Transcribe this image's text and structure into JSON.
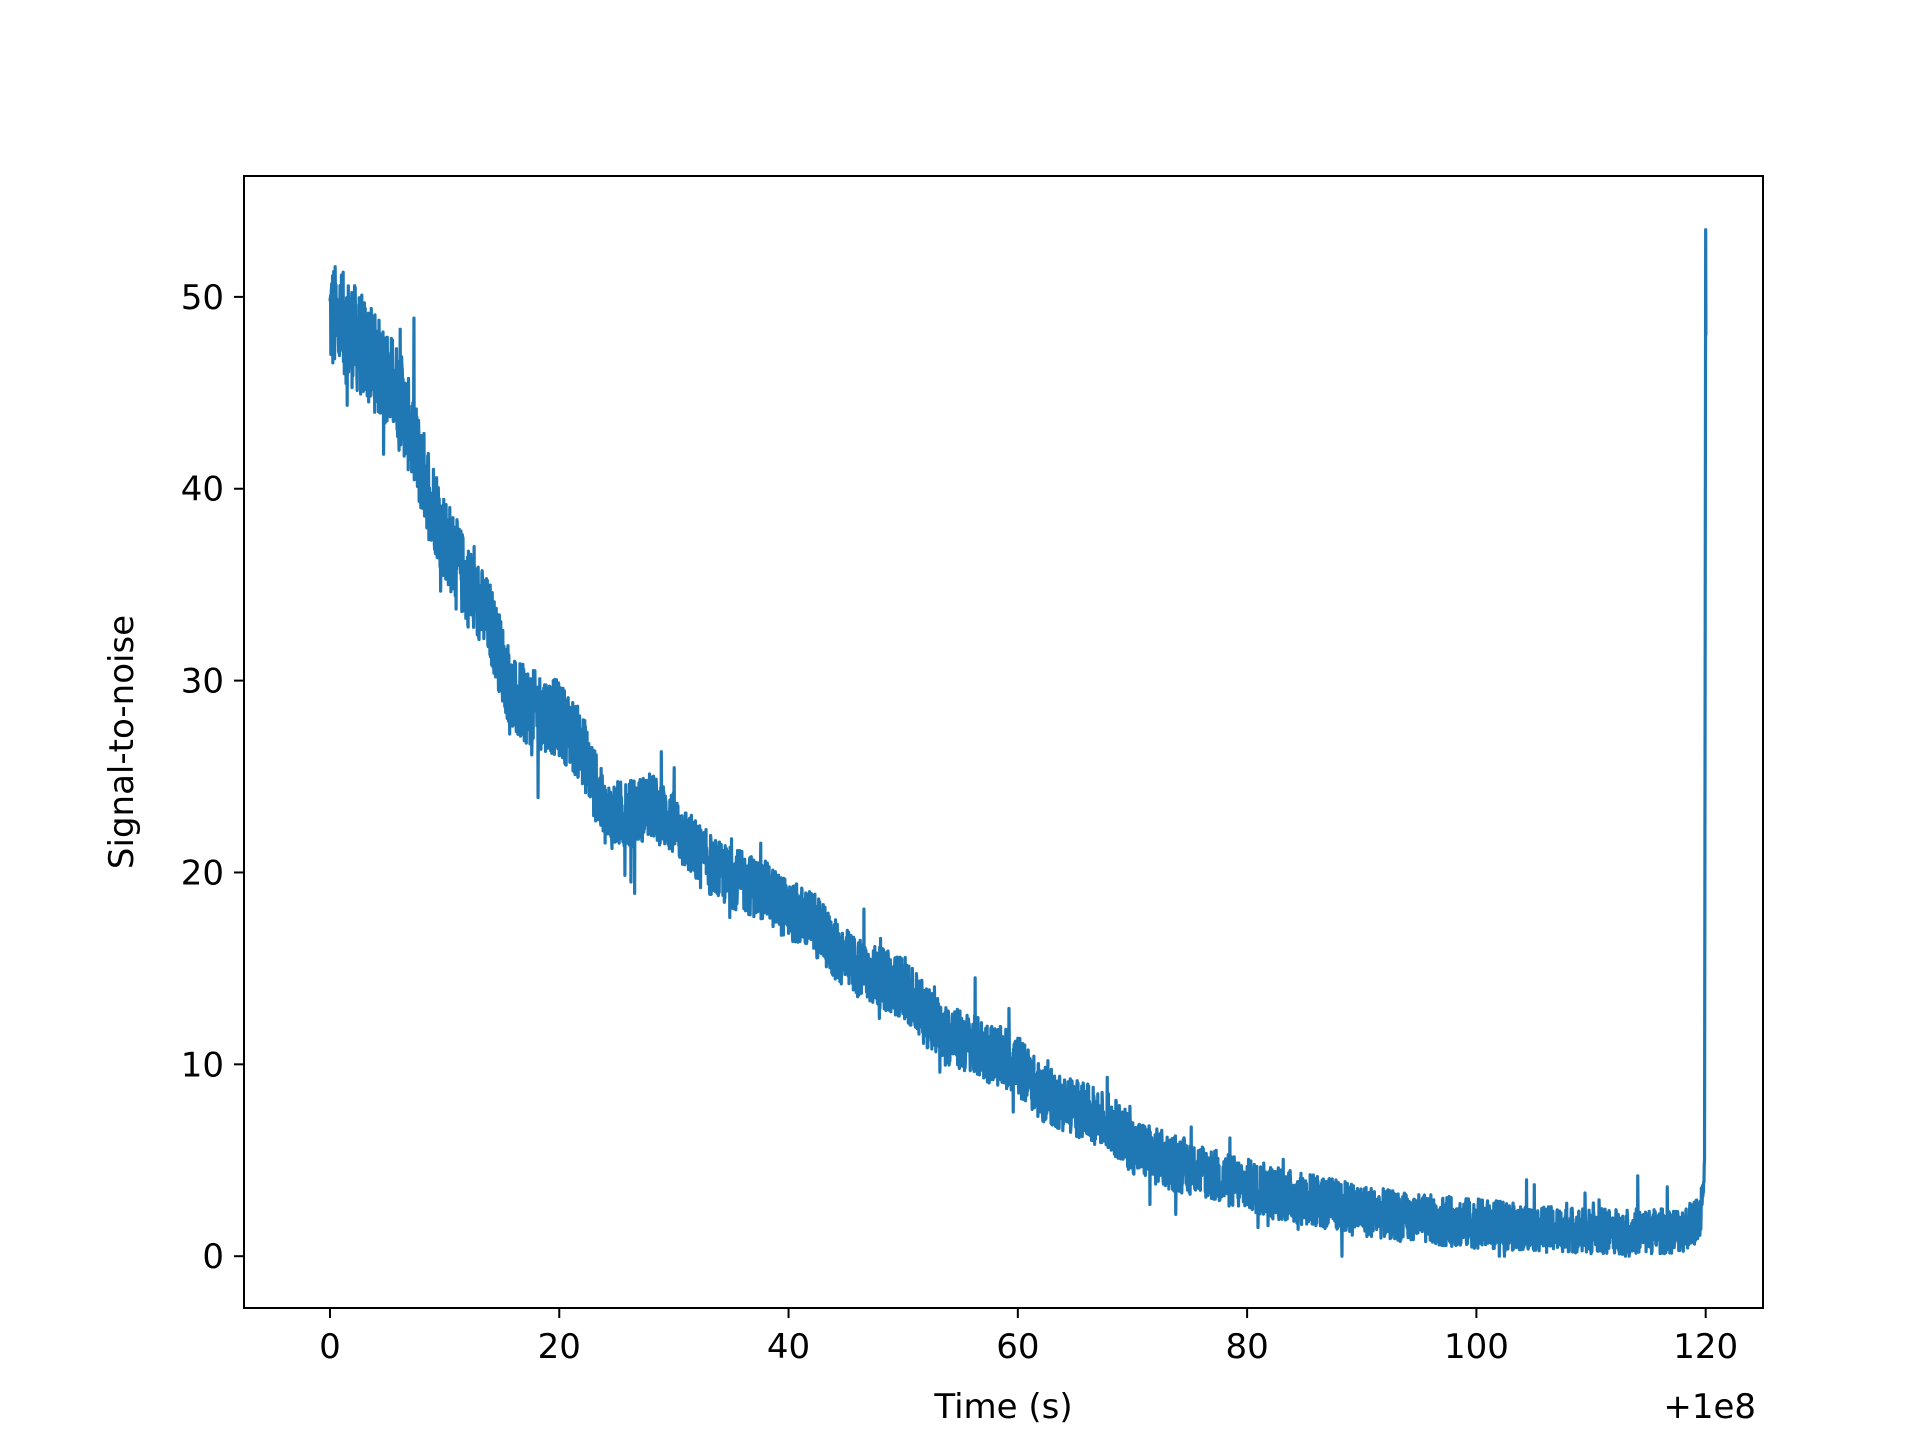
{
  "chart_data": {
    "type": "line",
    "title": "",
    "xlabel": "Time (s)",
    "ylabel": "Signal-to-noise",
    "x_offset_label": "+1e8",
    "xlim": [
      -7.5,
      125
    ],
    "ylim": [
      -2.7,
      56.3
    ],
    "xticks": [
      0,
      20,
      40,
      60,
      80,
      100,
      120
    ],
    "yticks": [
      0,
      10,
      20,
      30,
      40,
      50
    ],
    "xtick_labels": [
      "0",
      "20",
      "40",
      "60",
      "80",
      "100",
      "120"
    ],
    "ytick_labels": [
      "0",
      "10",
      "20",
      "30",
      "40",
      "50"
    ],
    "grid": false,
    "legend": "none",
    "series": [
      {
        "color": "#1f77b4",
        "x": [
          0,
          2,
          4,
          6,
          8,
          10,
          12,
          14,
          16,
          18,
          20,
          22,
          24,
          26,
          28,
          30,
          32,
          34,
          36,
          38,
          40,
          42,
          44,
          46,
          48,
          50,
          52,
          54,
          56,
          58,
          60,
          62,
          64,
          66,
          68,
          70,
          72,
          74,
          76,
          78,
          80,
          82,
          84,
          86,
          88,
          90,
          92,
          94,
          96,
          98,
          100,
          102,
          104,
          106,
          108,
          110,
          112,
          114,
          116,
          118,
          119.5,
          119.9,
          120,
          120.02
        ],
        "y": [
          49,
          48,
          46.5,
          45,
          41,
          37.5,
          35,
          33,
          29,
          28.5,
          28,
          26.5,
          23,
          23,
          23.5,
          22.5,
          21,
          20,
          19.5,
          19,
          18,
          17.5,
          16,
          15,
          14.5,
          14,
          12.5,
          11.5,
          11,
          10.5,
          10,
          8.5,
          8,
          7.5,
          7,
          5.8,
          5.2,
          4.8,
          4.5,
          4,
          3.7,
          3.4,
          3.1,
          2.9,
          2.6,
          2.4,
          2.2,
          2.0,
          1.9,
          1.8,
          1.7,
          1.6,
          1.5,
          1.4,
          1.4,
          1.3,
          1.3,
          1.3,
          1.3,
          1.4,
          2.0,
          5,
          53.5,
          48
        ],
        "noise_amplitude": [
          3.0,
          2.8,
          2.6,
          2.5,
          2.4,
          2.3,
          2.2,
          2.1,
          2.1,
          2.0,
          2.0,
          1.9,
          1.8,
          1.8,
          1.7,
          1.7,
          1.7,
          1.6,
          1.6,
          1.6,
          1.6,
          1.6,
          1.6,
          1.6,
          1.6,
          1.6,
          1.6,
          1.6,
          1.6,
          1.6,
          1.6,
          1.5,
          1.5,
          1.5,
          1.5,
          1.5,
          1.5,
          1.5,
          1.4,
          1.4,
          1.4,
          1.4,
          1.4,
          1.4,
          1.4,
          1.4,
          1.3,
          1.3,
          1.3,
          1.3,
          1.3,
          1.3,
          1.2,
          1.2,
          1.2,
          1.2,
          1.2,
          1.2,
          1.2,
          1.2,
          1.2,
          1.0,
          0,
          0
        ]
      }
    ]
  }
}
